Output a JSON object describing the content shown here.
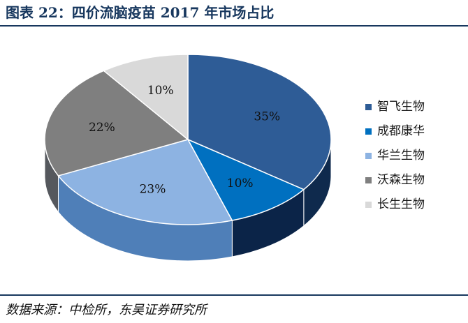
{
  "figure": {
    "title": "图表 22：四价流脑疫苗 2017 年市场占比",
    "source": "数据来源：中检所，东吴证券研究所"
  },
  "chart_data": {
    "type": "pie",
    "title": "图表 22：四价流脑疫苗 2017 年市场占比",
    "categories": [
      "智飞生物",
      "成都康华",
      "华兰生物",
      "沃森生物",
      "长生生物"
    ],
    "values": [
      35,
      10,
      23,
      22,
      10
    ],
    "value_labels": [
      "35%",
      "10%",
      "23%",
      "22%",
      "10%"
    ],
    "colors": [
      "#2e5c96",
      "#0070c0",
      "#8db3e2",
      "#7f7f7f",
      "#d9d9d9"
    ],
    "side_colors": [
      "#0f2a4d",
      "#0b2448",
      "#4f7fb8",
      "#55585d",
      "#b8b8b8"
    ],
    "label_colors": [
      "#111111",
      "#111111",
      "#111111",
      "#111111",
      "#111111"
    ],
    "legend_position": "right",
    "style": "3d"
  }
}
